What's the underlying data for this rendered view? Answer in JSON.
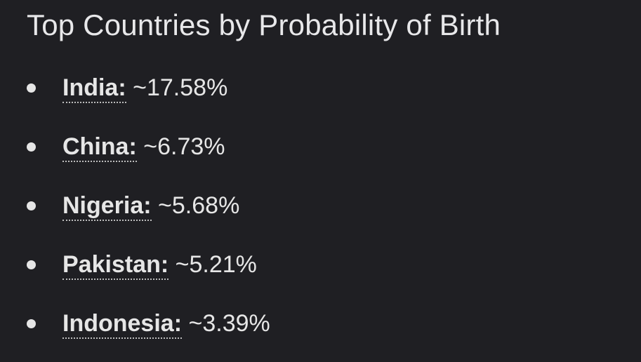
{
  "header": {
    "title": "Top Countries by Probability of Birth"
  },
  "list": {
    "items": [
      {
        "label": "India:",
        "value": "~17.58%"
      },
      {
        "label": "China:",
        "value": "~6.73%"
      },
      {
        "label": "Nigeria:",
        "value": "~5.68%"
      },
      {
        "label": "Pakistan:",
        "value": "~5.21%"
      },
      {
        "label": "Indonesia:",
        "value": "~3.39%"
      }
    ]
  }
}
